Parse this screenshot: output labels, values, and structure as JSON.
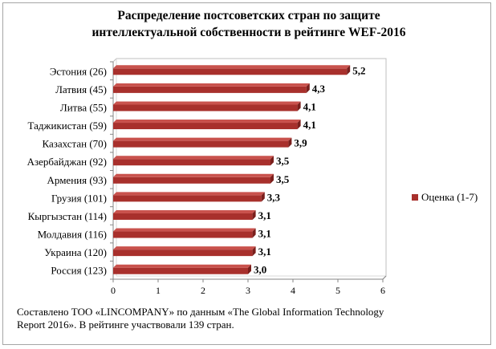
{
  "chart_data": {
    "type": "bar",
    "orientation": "horizontal",
    "title": "Распределение постсоветских стран по защите\nинтеллектуальной собственности в рейтинге WEF-2016",
    "categories": [
      "Эстония (26)",
      "Латвия (45)",
      "Литва (55)",
      "Таджикистан (59)",
      "Казахстан (70)",
      "Азербайджан (92)",
      "Армения (93)",
      "Грузия (101)",
      "Кыргызстан (114)",
      "Молдавия (116)",
      "Украина (120)",
      "Россия (123)"
    ],
    "series": [
      {
        "name": "Оценка (1-7)",
        "values": [
          5.2,
          4.3,
          4.1,
          4.1,
          3.9,
          3.5,
          3.5,
          3.3,
          3.1,
          3.1,
          3.1,
          3.0
        ]
      }
    ],
    "value_labels": [
      "5,2",
      "4,3",
      "4,1",
      "4,1",
      "3,9",
      "3,5",
      "3,5",
      "3,3",
      "3,1",
      "3,1",
      "3,1",
      "3,0"
    ],
    "xlim": [
      0,
      6
    ],
    "xticks": [
      "0",
      "1",
      "2",
      "3",
      "4",
      "5",
      "6"
    ],
    "xlabel": "",
    "ylabel": "",
    "grid": false,
    "legend_position": "right",
    "bar_color": "#a8302c"
  },
  "source_note": "Составлено ТОО «LINCOMPANY» по данным  «The Global Information Technology Report 2016». В рейтинге участвовали 139 стран."
}
